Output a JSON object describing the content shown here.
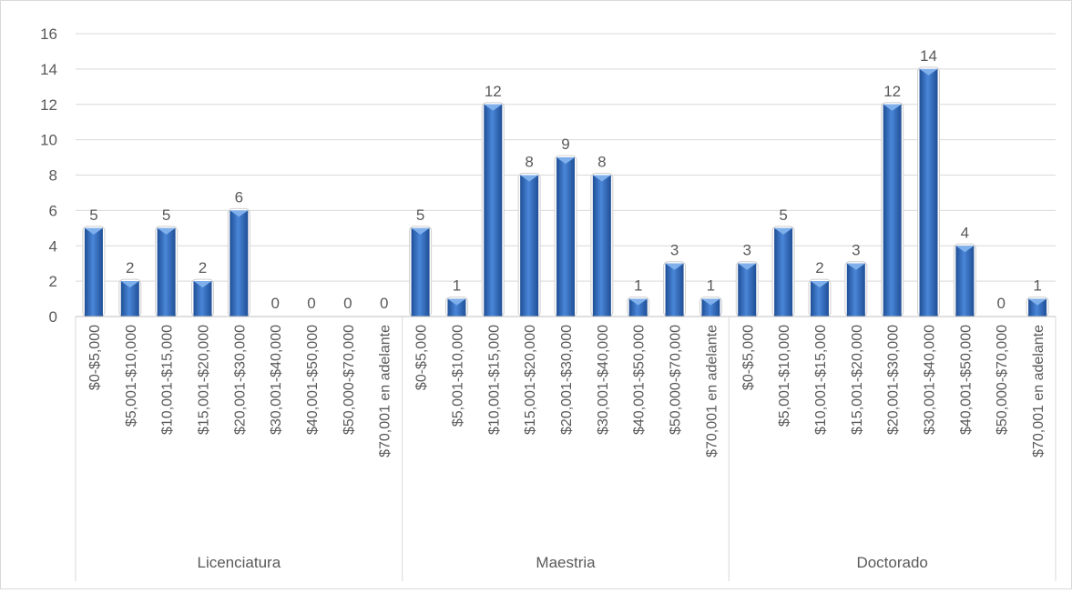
{
  "chart_data": {
    "type": "bar",
    "title": "",
    "xlabel": "",
    "ylabel": "",
    "ylim": [
      0,
      16
    ],
    "yticks": [
      "0",
      "2",
      "4",
      "6",
      "8",
      "10",
      "12",
      "14",
      "16"
    ],
    "grid": true,
    "legend": "none",
    "bar_color": "#2f5fa8",
    "groups": [
      {
        "name": "Licenciatura",
        "categories": [
          "$0-$5,000",
          "$5,001-$10,000",
          "$10,001-$15,000",
          "$15,001-$20,000",
          "$20,001-$30,000",
          "$30,001-$40,000",
          "$40,001-$50,000",
          "$50,000-$70,000",
          "$70,001 en adelante"
        ],
        "values": [
          5,
          2,
          5,
          2,
          6,
          0,
          0,
          0,
          0
        ]
      },
      {
        "name": "Maestria",
        "categories": [
          "$0-$5,000",
          "$5,001-$10,000",
          "$10,001-$15,000",
          "$15,001-$20,000",
          "$20,001-$30,000",
          "$30,001-$40,000",
          "$40,001-$50,000",
          "$50,000-$70,000",
          "$70,001 en adelante"
        ],
        "values": [
          5,
          1,
          12,
          8,
          9,
          8,
          1,
          3,
          1
        ]
      },
      {
        "name": "Doctorado",
        "categories": [
          "$0-$5,000",
          "$5,001-$10,000",
          "$10,001-$15,000",
          "$15,001-$20,000",
          "$20,001-$30,000",
          "$30,001-$40,000",
          "$40,001-$50,000",
          "$50,000-$70,000",
          "$70,001 en adelante"
        ],
        "values": [
          3,
          5,
          2,
          3,
          12,
          14,
          4,
          0,
          1
        ]
      }
    ]
  }
}
